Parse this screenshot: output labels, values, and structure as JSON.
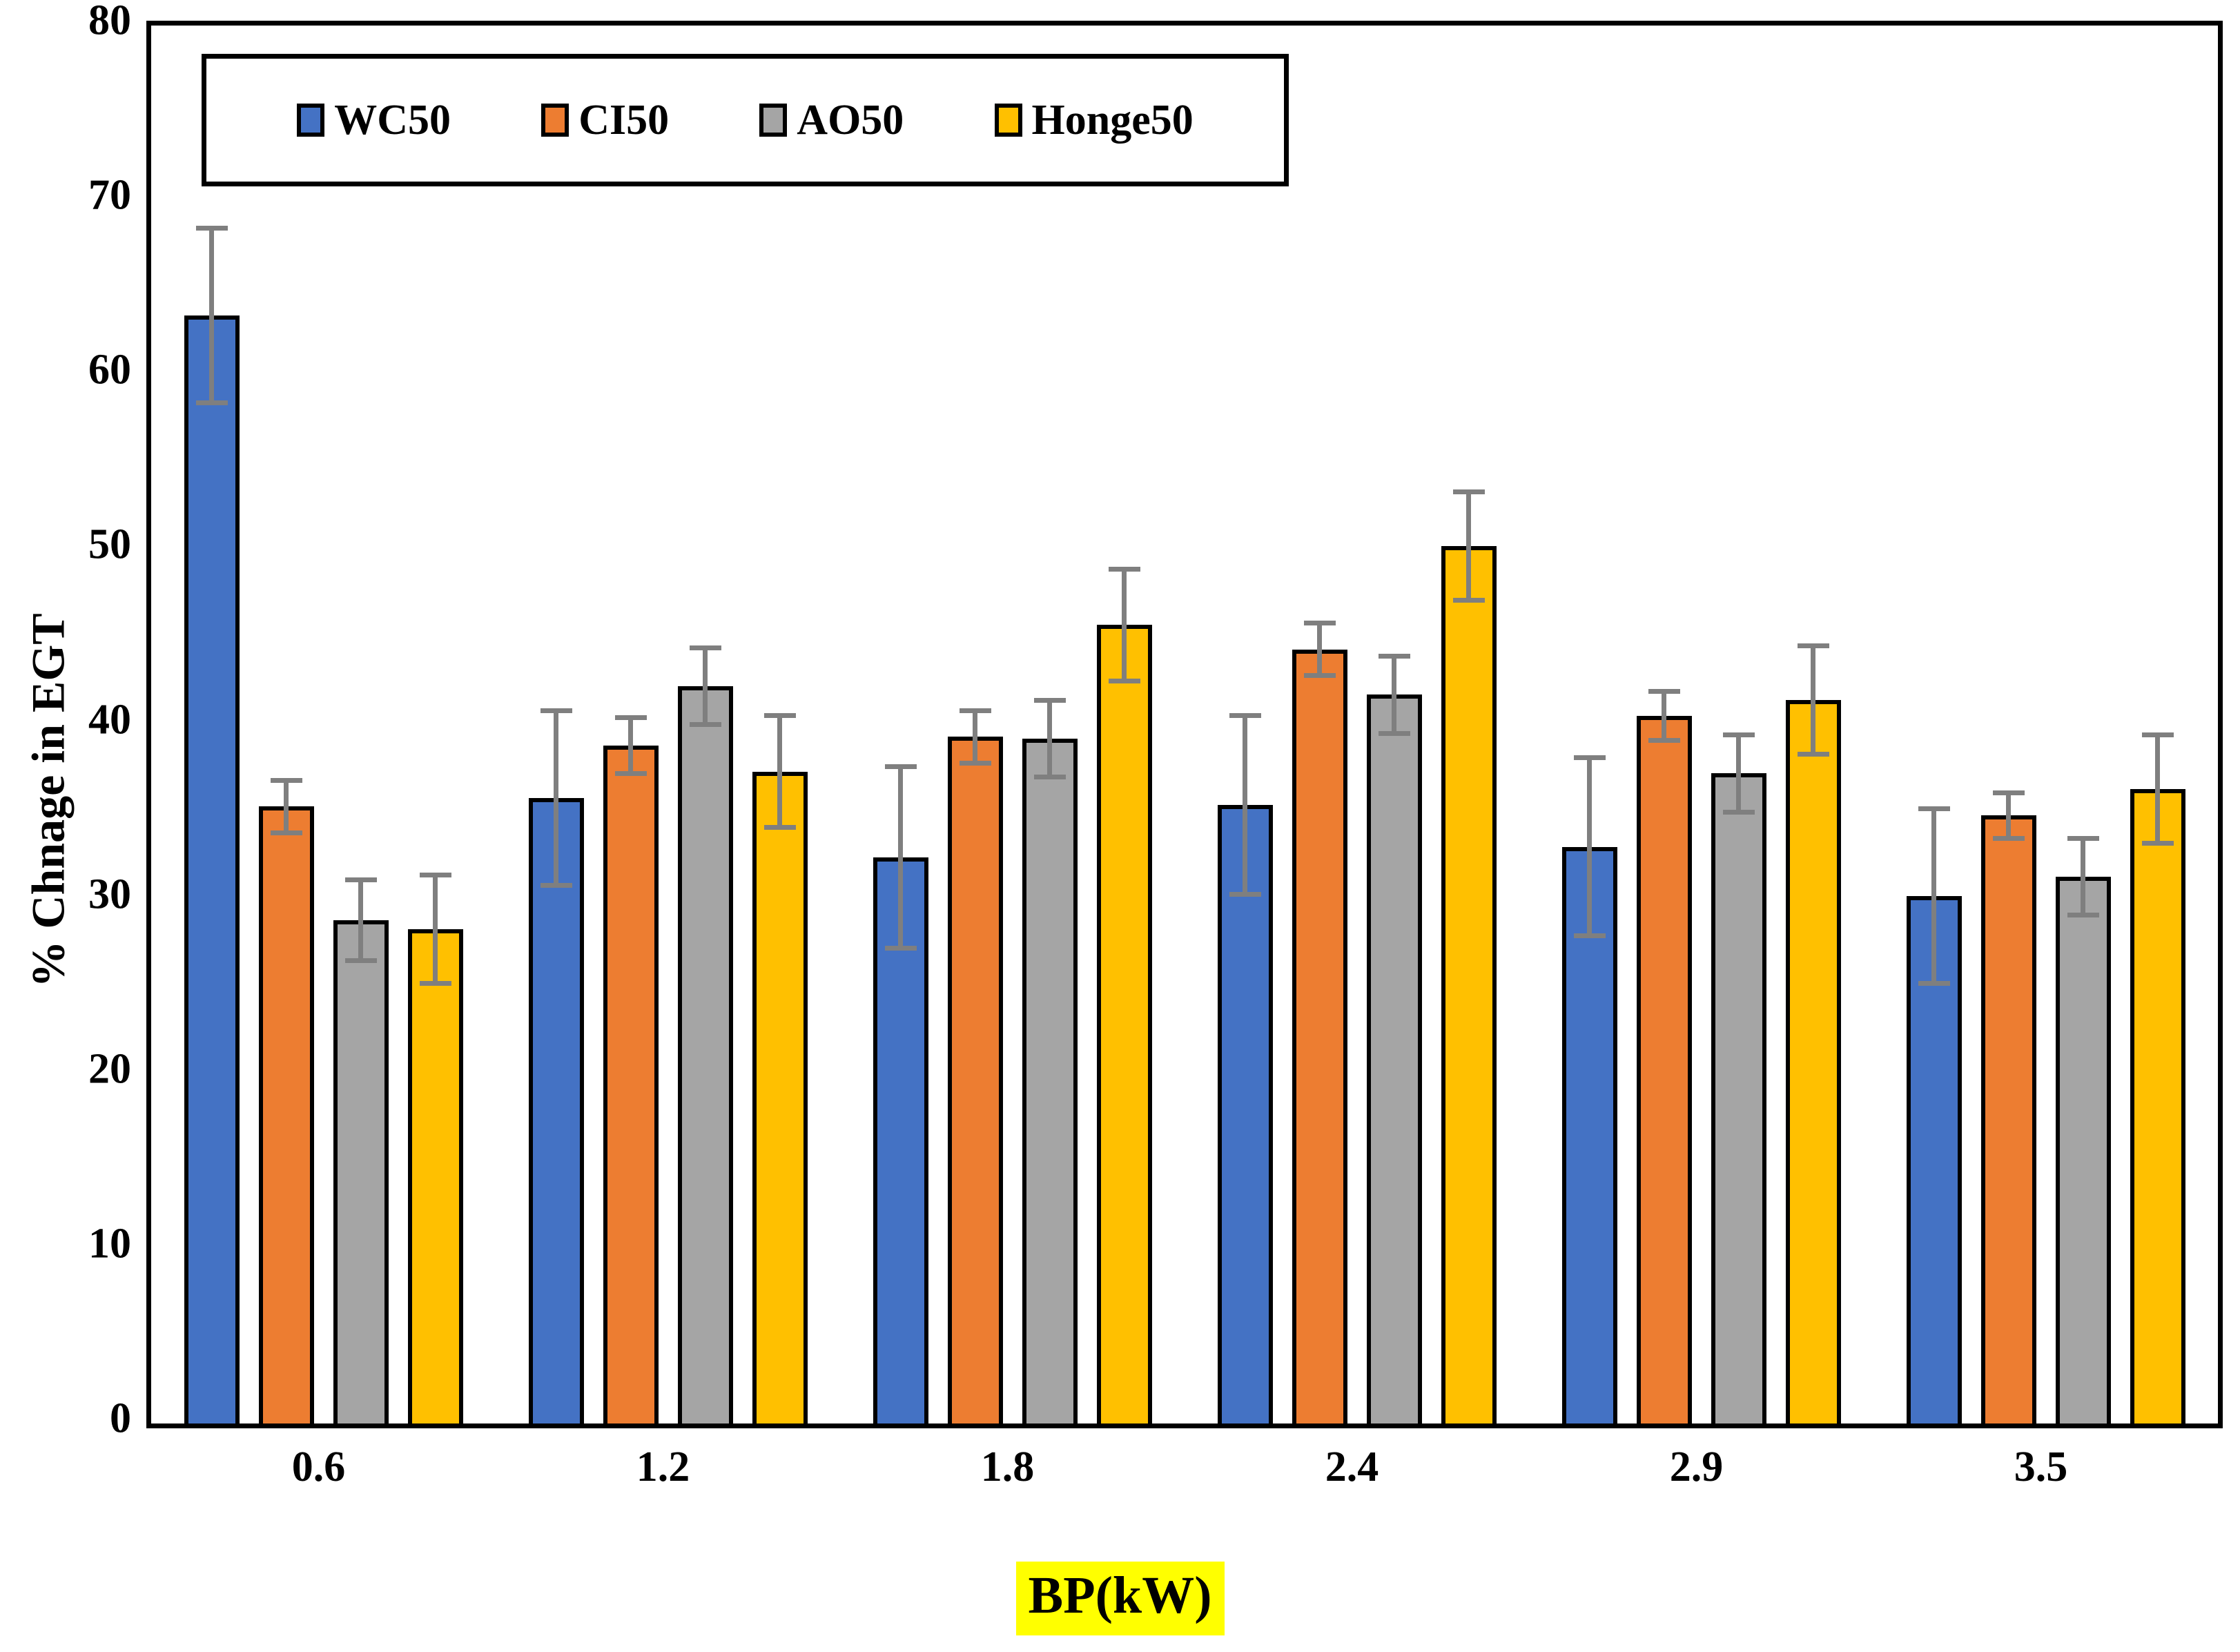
{
  "chart_data": {
    "type": "bar",
    "title": "",
    "xlabel": "BP(kW)",
    "ylabel": "% Chnage in EGT",
    "categories": [
      "0.6",
      "1.2",
      "1.8",
      "2.4",
      "2.9",
      "3.5"
    ],
    "series": [
      {
        "name": "WC50",
        "color": "#4472C4",
        "values": [
          63.4,
          35.8,
          32.4,
          35.4,
          33.0,
          30.2
        ],
        "errors": [
          5.0,
          5.0,
          5.2,
          5.1,
          5.1,
          5.0
        ]
      },
      {
        "name": "CI50",
        "color": "#ED7D31",
        "values": [
          35.3,
          38.8,
          39.3,
          44.3,
          40.5,
          34.8
        ],
        "errors": [
          1.5,
          1.6,
          1.5,
          1.5,
          1.4,
          1.3
        ]
      },
      {
        "name": "AO50",
        "color": "#A5A5A5",
        "values": [
          28.8,
          42.2,
          39.2,
          41.7,
          37.2,
          31.3
        ],
        "errors": [
          2.3,
          2.2,
          2.2,
          2.2,
          2.2,
          2.2
        ]
      },
      {
        "name": "Honge50",
        "color": "#FFC000",
        "values": [
          28.3,
          37.3,
          45.7,
          50.2,
          41.4,
          36.3
        ],
        "errors": [
          3.1,
          3.2,
          3.2,
          3.1,
          3.1,
          3.1
        ]
      }
    ],
    "ylim": [
      0,
      80
    ],
    "yticks": [
      0,
      10,
      20,
      30,
      40,
      50,
      60,
      70,
      80
    ],
    "grid": false,
    "legend_position": "top-left-inside",
    "error_bar_color": "#7F7F7F",
    "bar_outline_color": "#000000",
    "xlabel_highlight_color": "#FFFF00",
    "axis_color": "#000000"
  }
}
